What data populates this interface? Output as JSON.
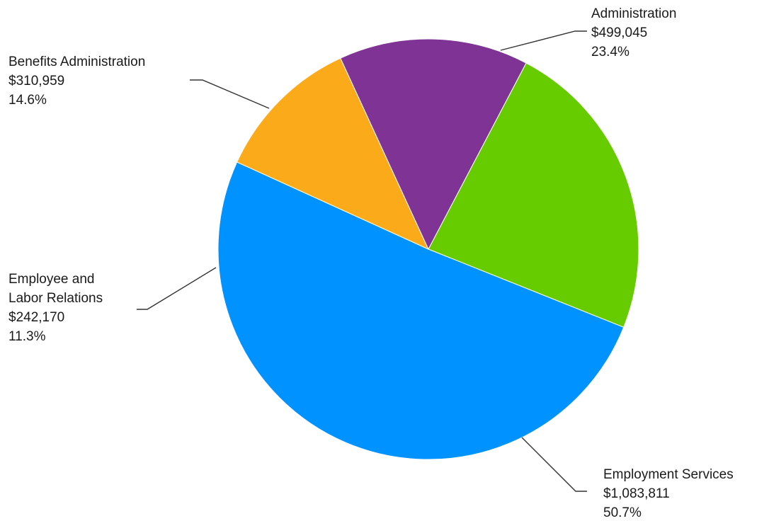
{
  "chart_data": {
    "type": "pie",
    "slices": [
      {
        "name": "Administration",
        "label_lines": [
          "Administration"
        ],
        "value": 499045,
        "value_label": "$499,045",
        "percent_label": "23.4%",
        "color": "#66cc00"
      },
      {
        "name": "Employment Services",
        "label_lines": [
          "Employment Services"
        ],
        "value": 1083811,
        "value_label": "$1,083,811",
        "percent_label": "50.7%",
        "color": "#0093ff"
      },
      {
        "name": "Employee and Labor Relations",
        "label_lines": [
          "Employee and",
          "Labor Relations"
        ],
        "value": 242170,
        "value_label": "$242,170",
        "percent_label": "11.3%",
        "color": "#fbaa1a"
      },
      {
        "name": "Benefits Administration",
        "label_lines": [
          "Benefits Administration"
        ],
        "value": 310959,
        "value_label": "$310,959",
        "percent_label": "14.6%",
        "color": "#7f3395"
      }
    ],
    "start_direction": "clockwise from about 1 o'clock",
    "legend": "none",
    "labels": "outside with leader lines"
  }
}
